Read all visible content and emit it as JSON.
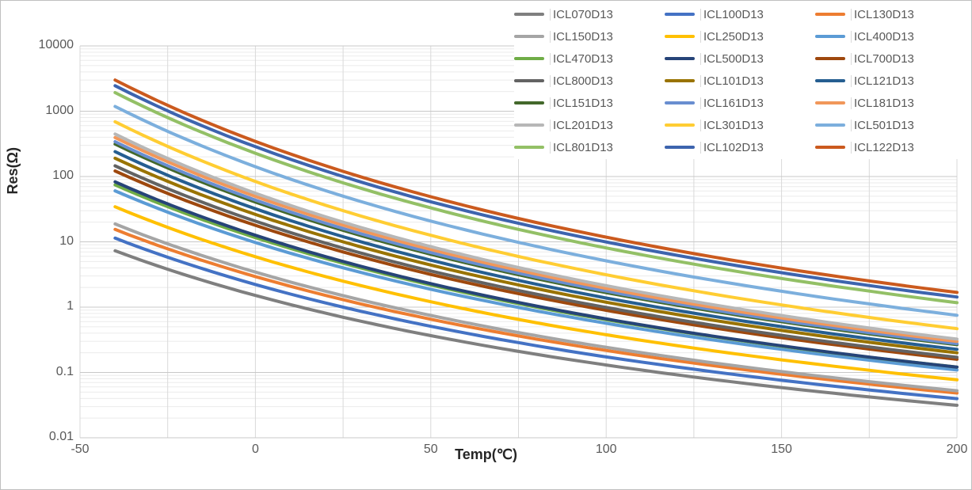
{
  "chart_data": {
    "type": "line",
    "title": "",
    "xlabel": "Temp(℃)",
    "ylabel": "Res(Ω)",
    "legend_position": "top-right",
    "grid": true,
    "x_axis": {
      "min": -50,
      "max": 200,
      "ticks": [
        "-50",
        "0",
        "50",
        "100",
        "150",
        "200"
      ],
      "minor_grid_step": 25
    },
    "y_axis": {
      "scale": "log",
      "min": 0.01,
      "max": 10000,
      "ticks": [
        "10000",
        "1000",
        "100",
        "10",
        "1",
        "0.1",
        "0.01"
      ]
    },
    "x": [
      -40,
      -20,
      0,
      25,
      50,
      75,
      100,
      125,
      150,
      175,
      200
    ],
    "series": [
      {
        "name": "ICL070D13",
        "color": "#7f7f7f",
        "values": [
          7.3,
          3.11,
          1.51,
          0.7,
          0.366,
          0.21,
          0.13,
          0.085,
          0.0587,
          0.0422,
          0.0314
        ]
      },
      {
        "name": "ICL100D13",
        "color": "#4472c4",
        "values": [
          11.4,
          4.72,
          2.22,
          1.0,
          0.509,
          0.286,
          0.173,
          0.112,
          0.0759,
          0.0539,
          0.0397
        ]
      },
      {
        "name": "ICL130D13",
        "color": "#ed7d31",
        "values": [
          15.5,
          6.32,
          2.94,
          1.3,
          0.653,
          0.362,
          0.217,
          0.139,
          0.0939,
          0.0662,
          0.0484
        ]
      },
      {
        "name": "ICL150D13",
        "color": "#a5a5a5",
        "values": [
          18.8,
          7.52,
          3.44,
          1.5,
          0.745,
          0.408,
          0.243,
          0.154,
          0.103,
          0.0723,
          0.0525
        ]
      },
      {
        "name": "ICL250D13",
        "color": "#ffc000",
        "values": [
          34.4,
          13.3,
          5.91,
          2.5,
          1.21,
          0.648,
          0.378,
          0.236,
          0.156,
          0.108,
          0.0772
        ]
      },
      {
        "name": "ICL400D13",
        "color": "#5b9bd5",
        "values": [
          60.4,
          22.6,
          9.75,
          4.0,
          1.88,
          0.988,
          0.566,
          0.347,
          0.226,
          0.154,
          0.109
        ]
      },
      {
        "name": "ICL470D13",
        "color": "#70ad47",
        "values": [
          74.4,
          27.3,
          11.6,
          4.7,
          2.18,
          1.13,
          0.642,
          0.391,
          0.252,
          0.171,
          0.121
        ]
      },
      {
        "name": "ICL500D13",
        "color": "#264478",
        "values": [
          82.9,
          30.0,
          12.6,
          5.0,
          2.29,
          1.18,
          0.661,
          0.398,
          0.256,
          0.172,
          0.121
        ]
      },
      {
        "name": "ICL700D13",
        "color": "#9e480e",
        "values": [
          121.7,
          43.2,
          17.9,
          7.0,
          3.17,
          1.61,
          0.894,
          0.535,
          0.34,
          0.228,
          0.159
        ]
      },
      {
        "name": "ICL800D13",
        "color": "#636363",
        "values": [
          145.7,
          50.9,
          20.7,
          8.0,
          3.58,
          1.8,
          0.988,
          0.586,
          0.37,
          0.246,
          0.171
        ]
      },
      {
        "name": "ICL101D13",
        "color": "#997300",
        "values": [
          190.8,
          65.6,
          26.3,
          10.0,
          4.41,
          2.19,
          1.19,
          0.702,
          0.44,
          0.29,
          0.2
        ]
      },
      {
        "name": "ICL121D13",
        "color": "#255e91",
        "values": [
          240.0,
          81.0,
          32.1,
          12.0,
          5.23,
          2.57,
          1.38,
          0.808,
          0.503,
          0.329,
          0.226
        ]
      },
      {
        "name": "ICL151D13",
        "color": "#43682b",
        "values": [
          314.0,
          104.4,
          40.7,
          15.0,
          6.45,
          3.13,
          1.67,
          0.969,
          0.598,
          0.389,
          0.266
        ]
      },
      {
        "name": "ICL161D13",
        "color": "#698ed0",
        "values": [
          341.6,
          112.7,
          43.7,
          16.0,
          6.84,
          3.31,
          1.76,
          1.02,
          0.625,
          0.406,
          0.276
        ]
      },
      {
        "name": "ICL181D13",
        "color": "#f1975a",
        "values": [
          395.3,
          129.1,
          49.6,
          18.0,
          7.64,
          3.67,
          1.94,
          1.11,
          0.682,
          0.442,
          0.299
        ]
      },
      {
        "name": "ICL201D13",
        "color": "#b7b7b7",
        "values": [
          447.4,
          145.1,
          55.5,
          20.0,
          8.44,
          4.04,
          2.13,
          1.22,
          0.744,
          0.479,
          0.324
        ]
      },
      {
        "name": "ICL301D13",
        "color": "#ffcd33",
        "values": [
          690.0,
          221.6,
          84.0,
          30.0,
          12.6,
          5.97,
          3.13,
          1.78,
          1.08,
          0.696,
          0.468
        ]
      },
      {
        "name": "ICL501D13",
        "color": "#7cafdd",
        "values": [
          1183.0,
          376.0,
          141.3,
          50.0,
          20.8,
          9.8,
          5.12,
          2.89,
          1.75,
          1.12,
          0.751
        ]
      },
      {
        "name": "ICL801D13",
        "color": "#93c066",
        "values": [
          1929.0,
          608.9,
          227.4,
          80.0,
          33.1,
          15.5,
          8.07,
          4.55,
          2.75,
          1.76,
          1.17
        ]
      },
      {
        "name": "ICL102D13",
        "color": "#3d64ae",
        "values": [
          2457.0,
          770.2,
          286.0,
          100.0,
          41.1,
          19.2,
          9.95,
          5.59,
          3.37,
          2.14,
          1.43
        ]
      },
      {
        "name": "ICL122D13",
        "color": "#cb5a1e",
        "values": [
          3004.0,
          935.3,
          345.4,
          120.0,
          49.1,
          22.8,
          11.8,
          6.6,
          3.96,
          2.52,
          1.68
        ]
      }
    ]
  }
}
